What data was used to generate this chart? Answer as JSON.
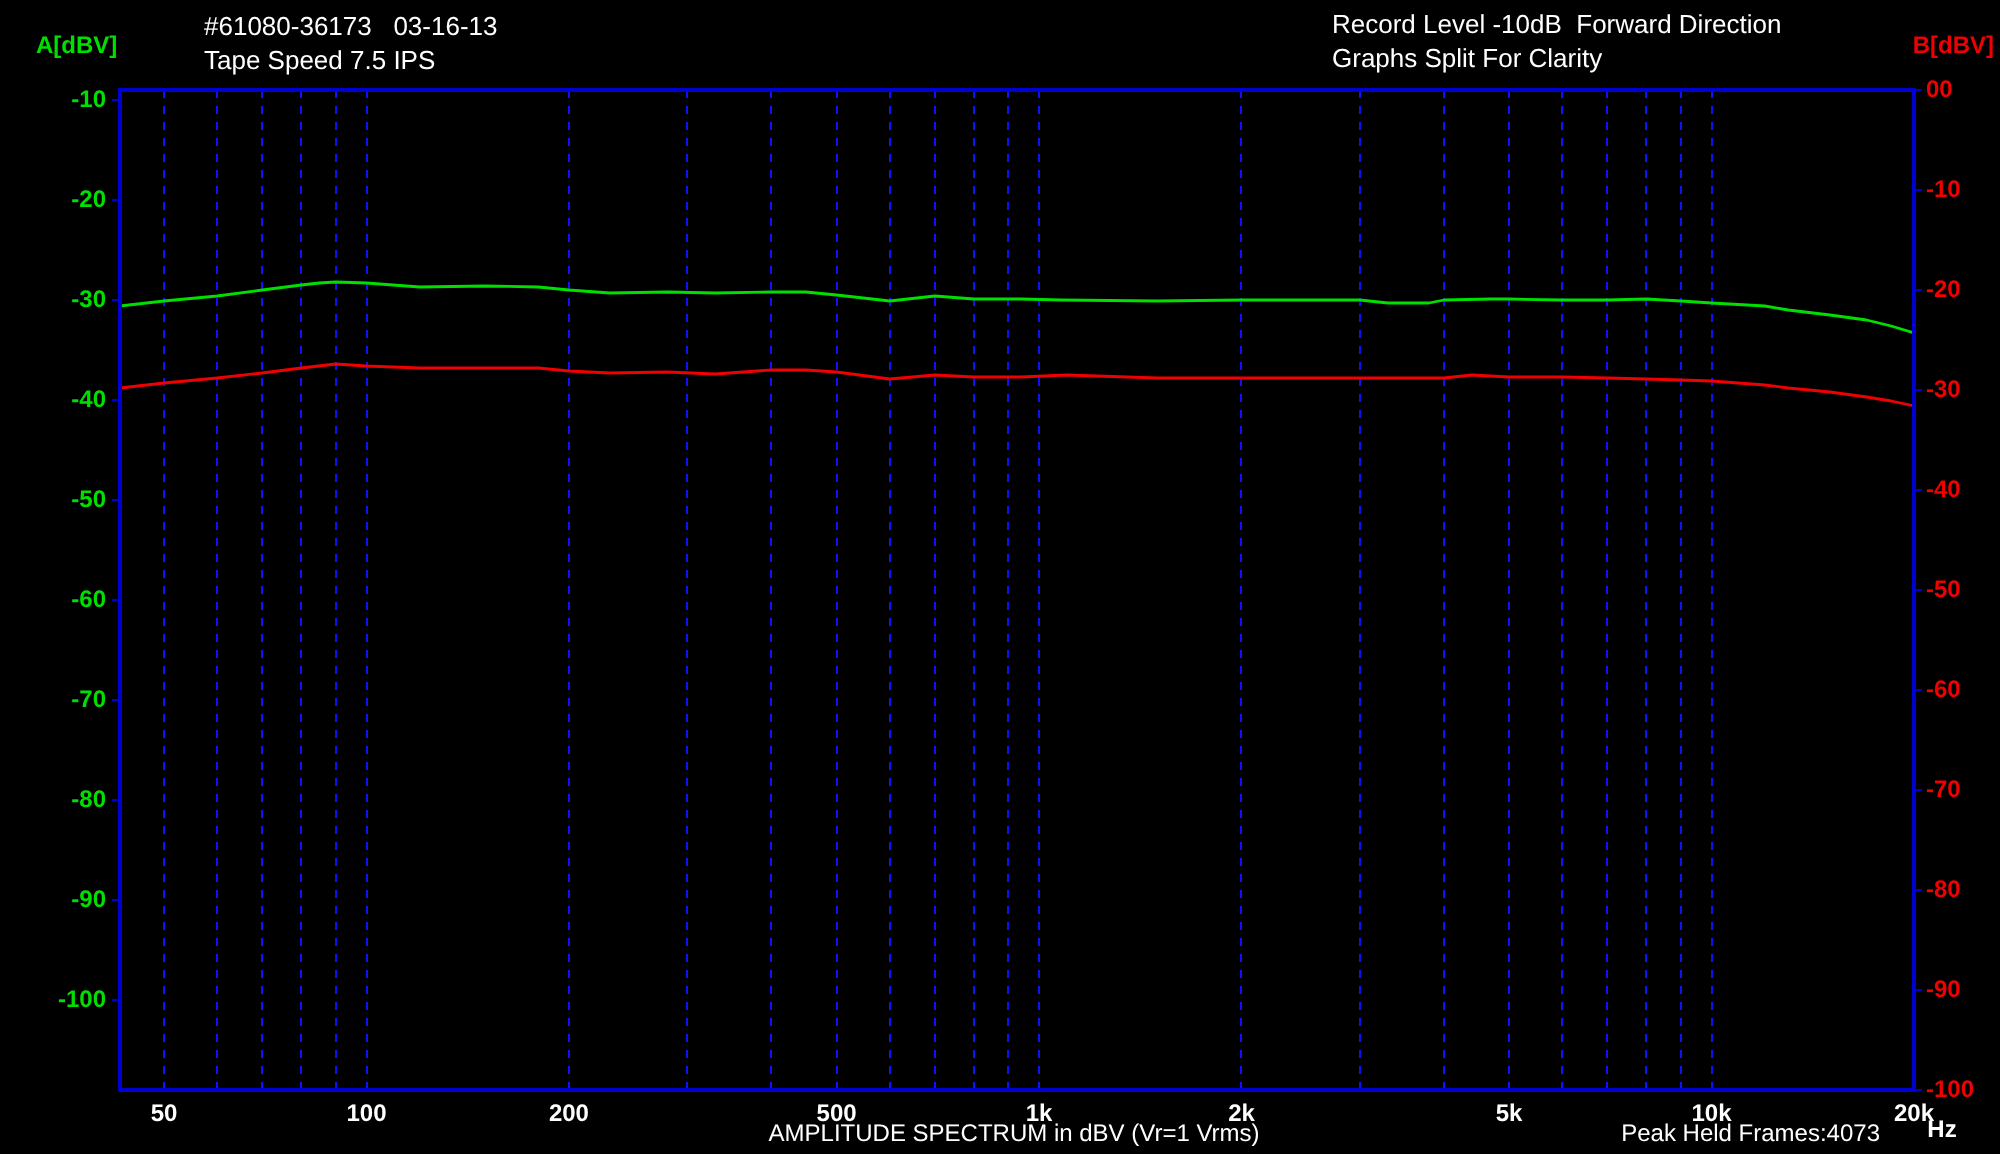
{
  "chart_data": {
    "type": "line",
    "title": "#61080-36173   03-16-13",
    "subtitle": "Tape Speed 7.5 IPS",
    "xlabel": "Hz",
    "ylabel": "A[dBV]",
    "y2label": "B[dBV]",
    "annotations": [
      "Record Level -10dB  Forward Direction",
      "Graphs Split For Clarity",
      "AMPLITUDE SPECTRUM in dBV (Vr=1 Vrms)",
      "Peak Held Frames:4073"
    ],
    "log": "x",
    "grid": "x",
    "line_style": "solid",
    "xlim": [
      43,
      20000
    ],
    "xticks": [
      50,
      {
        "value": 60,
        "label": null
      },
      {
        "value": 70,
        "label": null
      },
      {
        "value": 80,
        "label": null
      },
      {
        "value": 90,
        "label": null
      },
      100,
      200,
      {
        "value": 300,
        "label": null
      },
      {
        "value": 400,
        "label": null
      },
      500,
      {
        "value": 600,
        "label": null
      },
      {
        "value": 700,
        "label": null
      },
      {
        "value": 800,
        "label": null
      },
      {
        "value": 900,
        "label": null
      },
      {
        "value": 1000,
        "label": "1k"
      },
      {
        "value": 2000,
        "label": "2k"
      },
      {
        "value": 3000,
        "label": null
      },
      {
        "value": 4000,
        "label": null
      },
      {
        "value": 5000,
        "label": "5k"
      },
      {
        "value": 6000,
        "label": null
      },
      {
        "value": 7000,
        "label": null
      },
      {
        "value": 8000,
        "label": null
      },
      {
        "value": 9000,
        "label": null
      },
      {
        "value": 10000,
        "label": "10k"
      },
      {
        "value": 20000,
        "label": "20k"
      }
    ],
    "ylim": [
      -109,
      -9
    ],
    "yticks": [
      -10,
      -20,
      -30,
      -40,
      -50,
      -60,
      -70,
      -80,
      -90,
      -100
    ],
    "y2lim": [
      -100,
      0
    ],
    "y2ticks": [
      {
        "value": 0,
        "label": "00"
      },
      -10,
      -20,
      -30,
      -40,
      -50,
      -60,
      -70,
      -80,
      -90,
      -100
    ],
    "series": [
      {
        "color": "#00e000",
        "axis": "y",
        "x": [
          43,
          50,
          60,
          70,
          80,
          85,
          90,
          100,
          120,
          150,
          180,
          200,
          230,
          280,
          330,
          400,
          450,
          500,
          600,
          700,
          800,
          940,
          1080,
          1500,
          2000,
          2400,
          3000,
          3300,
          3800,
          4000,
          4700,
          5000,
          6000,
          7000,
          8000,
          9000,
          10000,
          12000,
          13000,
          15000,
          17000,
          18500,
          20000
        ],
        "values": [
          -30.6,
          -30.1,
          -29.6,
          -29.0,
          -28.5,
          -28.3,
          -28.2,
          -28.3,
          -28.7,
          -28.6,
          -28.7,
          -29.0,
          -29.3,
          -29.2,
          -29.3,
          -29.2,
          -29.2,
          -29.5,
          -30.1,
          -29.6,
          -29.9,
          -29.9,
          -30.0,
          -30.1,
          -30.0,
          -30.0,
          -30.0,
          -30.3,
          -30.3,
          -30.0,
          -29.9,
          -29.9,
          -30.0,
          -30.0,
          -29.9,
          -30.1,
          -30.3,
          -30.6,
          -31.0,
          -31.5,
          -32.0,
          -32.6,
          -33.3
        ]
      },
      {
        "color": "#f00000",
        "axis": "y2",
        "x": [
          43,
          50,
          60,
          70,
          80,
          90,
          100,
          120,
          150,
          180,
          200,
          230,
          280,
          330,
          400,
          450,
          500,
          600,
          700,
          800,
          940,
          1100,
          1500,
          2000,
          2400,
          3000,
          4000,
          4400,
          5000,
          6000,
          7000,
          8000,
          9000,
          10000,
          12000,
          13000,
          15000,
          17000,
          18500,
          20000
        ],
        "values": [
          -29.8,
          -29.3,
          -28.8,
          -28.3,
          -27.8,
          -27.4,
          -27.6,
          -27.8,
          -27.8,
          -27.8,
          -28.1,
          -28.3,
          -28.2,
          -28.4,
          -28.0,
          -28.0,
          -28.2,
          -28.9,
          -28.5,
          -28.7,
          -28.7,
          -28.5,
          -28.8,
          -28.8,
          -28.8,
          -28.8,
          -28.8,
          -28.5,
          -28.7,
          -28.7,
          -28.8,
          -28.9,
          -29.0,
          -29.1,
          -29.5,
          -29.8,
          -30.2,
          -30.7,
          -31.1,
          -31.6
        ]
      }
    ]
  }
}
